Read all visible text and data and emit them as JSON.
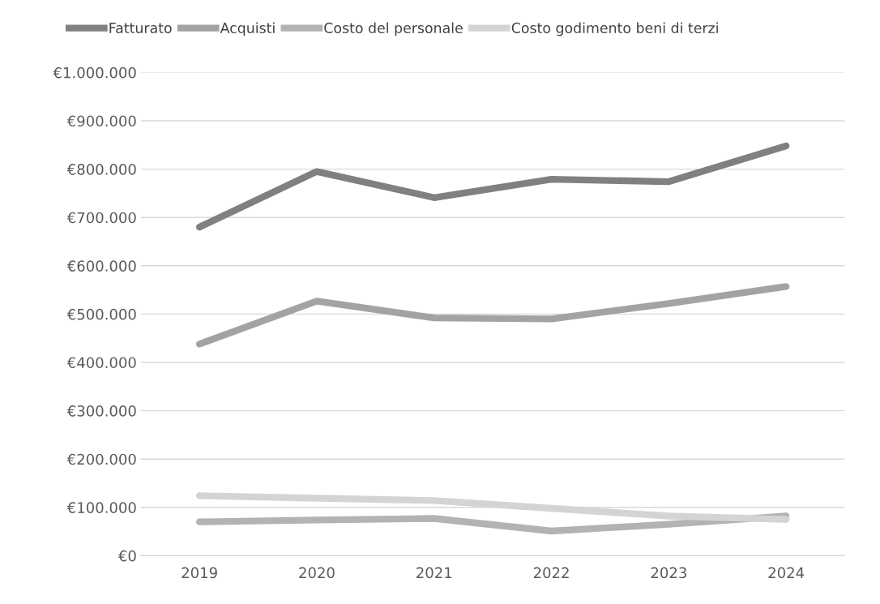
{
  "chart_data": {
    "type": "line",
    "categories": [
      "2019",
      "2020",
      "2021",
      "2022",
      "2023",
      "2024"
    ],
    "series": [
      {
        "name": "Fatturato",
        "color": "#808080",
        "values": [
          680000,
          795000,
          741000,
          779000,
          774000,
          848000
        ]
      },
      {
        "name": "Acquisti",
        "color": "#a3a3a3",
        "values": [
          438000,
          527000,
          492000,
          490000,
          522000,
          557000
        ]
      },
      {
        "name": "Costo del personale",
        "color": "#b3b3b3",
        "values": [
          70000,
          74000,
          77000,
          51000,
          65000,
          82000
        ]
      },
      {
        "name": "Costo godimento beni di terzi",
        "color": "#d4d4d4",
        "values": [
          124000,
          119000,
          114000,
          98000,
          82000,
          75000
        ]
      }
    ],
    "ylim": [
      0,
      1000000
    ],
    "yticks": [
      {
        "value": 0,
        "label": "€0"
      },
      {
        "value": 100000,
        "label": "€100.000"
      },
      {
        "value": 200000,
        "label": "€200.000"
      },
      {
        "value": 300000,
        "label": "€300.000"
      },
      {
        "value": 400000,
        "label": "€400.000"
      },
      {
        "value": 500000,
        "label": "€500.000"
      },
      {
        "value": 600000,
        "label": "€600.000"
      },
      {
        "value": 700000,
        "label": "€700.000"
      },
      {
        "value": 800000,
        "label": "€800.000"
      },
      {
        "value": 900000,
        "label": "€900.000"
      },
      {
        "value": 1000000,
        "label": "€1.000.000"
      }
    ],
    "grid": "y",
    "legend": "top left",
    "marker": "none",
    "line_style": "solid"
  }
}
